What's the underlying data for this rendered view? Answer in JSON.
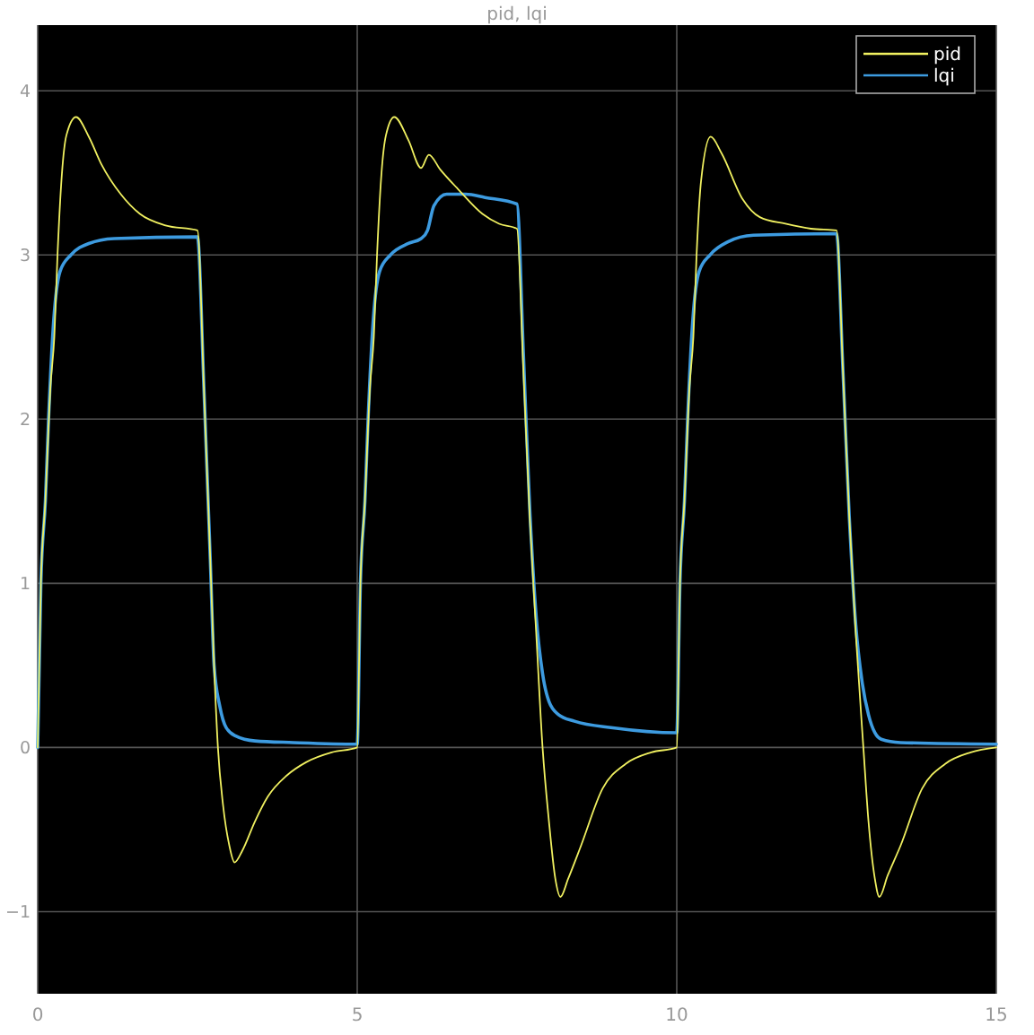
{
  "chart_data": {
    "type": "line",
    "title": "pid, lqi",
    "xlim": [
      0,
      15
    ],
    "ylim": [
      -1.5,
      4.4
    ],
    "xticks": [
      0,
      5,
      10,
      15
    ],
    "yticks": [
      -1,
      0,
      1,
      2,
      3,
      4
    ],
    "grid": true,
    "legend": "top right",
    "marker": "none",
    "line_style": "solid",
    "series": [
      {
        "name": "pid",
        "color": "#f0f060",
        "x": [
          0,
          0.05,
          0.12,
          0.2,
          0.26,
          0.31,
          0.38,
          0.45,
          0.6,
          0.8,
          1.0,
          1.3,
          1.6,
          2.0,
          2.5,
          2.6,
          2.7,
          2.76,
          2.82,
          2.9,
          3.0,
          3.08,
          3.2,
          3.4,
          3.6,
          3.9,
          4.2,
          4.6,
          5,
          5.05,
          5.12,
          5.2,
          5.26,
          5.31,
          5.38,
          5.45,
          5.58,
          5.8,
          6.0,
          6.12,
          6.3,
          6.58,
          6.96,
          7.22,
          7.5,
          7.6,
          7.7,
          7.8,
          7.9,
          8.0,
          8.1,
          8.18,
          8.3,
          8.5,
          8.84,
          9.2,
          9.6,
          10,
          10.05,
          10.12,
          10.2,
          10.26,
          10.31,
          10.38,
          10.53,
          10.7,
          11.03,
          11.3,
          11.7,
          12.1,
          12.5,
          12.6,
          12.7,
          12.8,
          12.92,
          13.0,
          13.1,
          13.17,
          13.3,
          13.5,
          13.84,
          14.2,
          14.6,
          15
        ],
        "values": [
          0,
          1,
          1.5,
          2.2,
          2.5,
          3.0,
          3.5,
          3.73,
          3.84,
          3.72,
          3.55,
          3.37,
          3.25,
          3.18,
          3.15,
          2.2,
          1.15,
          0.5,
          0,
          -0.35,
          -0.6,
          -0.7,
          -0.63,
          -0.45,
          -0.3,
          -0.17,
          -0.09,
          -0.03,
          0,
          1,
          1.5,
          2.2,
          2.5,
          3.0,
          3.5,
          3.73,
          3.84,
          3.7,
          3.53,
          3.61,
          3.52,
          3.4,
          3.25,
          3.19,
          3.16,
          2.3,
          1.4,
          0.7,
          0,
          -0.45,
          -0.8,
          -0.91,
          -0.8,
          -0.6,
          -0.25,
          -0.1,
          -0.03,
          0,
          1,
          1.5,
          2.2,
          2.5,
          3.0,
          3.45,
          3.72,
          3.62,
          3.34,
          3.23,
          3.19,
          3.16,
          3.15,
          2.3,
          1.4,
          0.7,
          0,
          -0.45,
          -0.8,
          -0.91,
          -0.78,
          -0.6,
          -0.25,
          -0.1,
          -0.03,
          0
        ]
      },
      {
        "name": "lqi",
        "color": "#3d9be0",
        "x": [
          0,
          0.05,
          0.12,
          0.17,
          0.25,
          0.35,
          0.52,
          0.8,
          1.2,
          2.5,
          2.6,
          2.7,
          2.76,
          2.85,
          2.95,
          3.1,
          3.4,
          4,
          5,
          5.05,
          5.12,
          5.17,
          5.25,
          5.35,
          5.52,
          5.8,
          6.0,
          6.1,
          6.2,
          6.4,
          6.7,
          7.0,
          7.5,
          7.6,
          7.7,
          7.8,
          7.9,
          8.0,
          8.15,
          8.4,
          9.0,
          10,
          10.05,
          10.12,
          10.17,
          10.25,
          10.35,
          10.52,
          10.8,
          11.2,
          12.5,
          12.6,
          12.7,
          12.8,
          12.9,
          13.0,
          13.1,
          13.2,
          13.5,
          15
        ],
        "values": [
          0,
          1,
          1.5,
          2,
          2.6,
          2.9,
          3.0,
          3.07,
          3.1,
          3.11,
          2.2,
          1.15,
          0.5,
          0.25,
          0.12,
          0.07,
          0.04,
          0.03,
          0.02,
          1,
          1.5,
          2,
          2.6,
          2.9,
          3.0,
          3.07,
          3.1,
          3.15,
          3.3,
          3.37,
          3.37,
          3.35,
          3.31,
          2.4,
          1.45,
          0.8,
          0.45,
          0.28,
          0.2,
          0.16,
          0.12,
          0.09,
          1,
          1.5,
          2,
          2.6,
          2.9,
          3.0,
          3.08,
          3.12,
          3.13,
          2.3,
          1.4,
          0.75,
          0.4,
          0.2,
          0.09,
          0.05,
          0.03,
          0.02
        ]
      }
    ]
  }
}
